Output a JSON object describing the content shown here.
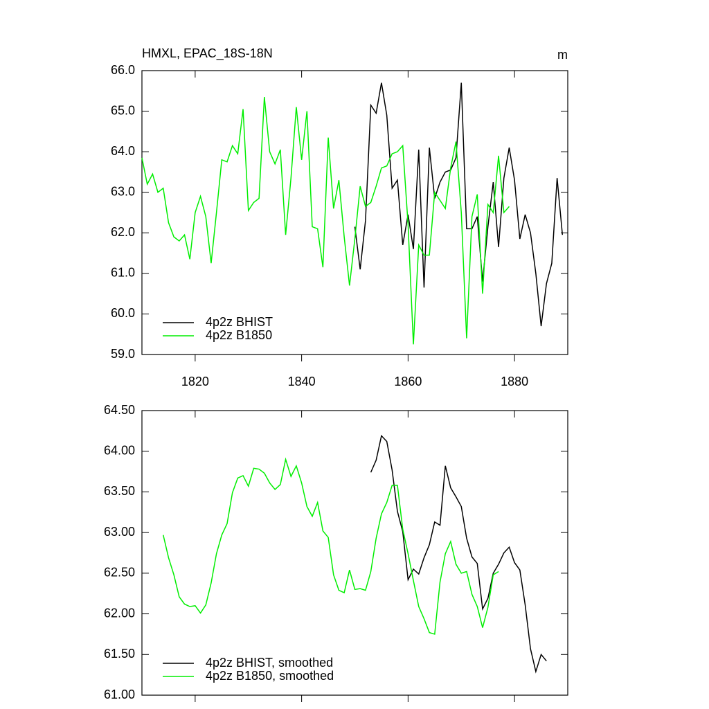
{
  "chart_data": [
    {
      "type": "line",
      "title": "HMXL, EPAC_18S-18N",
      "units": "m",
      "xlim": [
        1810,
        1890
      ],
      "xticks": [
        1820,
        1840,
        1860,
        1880
      ],
      "ylim": [
        59,
        66
      ],
      "yticks": [
        {
          "value": 59,
          "label": "59.0"
        },
        {
          "value": 60,
          "label": "60.0"
        },
        {
          "value": 61,
          "label": "61.0"
        },
        {
          "value": 62,
          "label": "62.0"
        },
        {
          "value": 63,
          "label": "63.0"
        },
        {
          "value": 64,
          "label": "64.0"
        },
        {
          "value": 65,
          "label": "65.0"
        },
        {
          "value": 66,
          "label": "66.0"
        }
      ],
      "legend": "lower left",
      "series": [
        {
          "name": "4p2z BHIST",
          "color": "#000000",
          "x": [
            1850,
            1851,
            1852,
            1853,
            1854,
            1855,
            1856,
            1857,
            1858,
            1859,
            1860,
            1861,
            1862,
            1863,
            1864,
            1865,
            1866,
            1867,
            1868,
            1869,
            1870,
            1871,
            1872,
            1873,
            1874,
            1875,
            1876,
            1877,
            1878,
            1879,
            1880,
            1881,
            1882,
            1883,
            1884,
            1885,
            1886,
            1887,
            1888,
            1889
          ],
          "values": [
            62.15,
            61.1,
            62.3,
            65.15,
            64.95,
            65.7,
            64.9,
            63.1,
            63.3,
            61.7,
            62.45,
            61.6,
            64.05,
            60.65,
            64.1,
            62.85,
            63.25,
            63.5,
            63.55,
            63.85,
            65.7,
            62.1,
            62.1,
            62.4,
            60.8,
            62.15,
            63.25,
            61.65,
            63.35,
            64.1,
            63.3,
            61.85,
            62.45,
            62.0,
            61.0,
            59.7,
            60.75,
            61.25,
            63.35,
            61.95
          ]
        },
        {
          "name": "4p2z B1850",
          "color": "#00ee00",
          "x": [
            1810,
            1811,
            1812,
            1813,
            1814,
            1815,
            1816,
            1817,
            1818,
            1819,
            1820,
            1821,
            1822,
            1823,
            1824,
            1825,
            1826,
            1827,
            1828,
            1829,
            1830,
            1831,
            1832,
            1833,
            1834,
            1835,
            1836,
            1837,
            1838,
            1839,
            1840,
            1841,
            1842,
            1843,
            1844,
            1845,
            1846,
            1847,
            1848,
            1849,
            1850,
            1851,
            1852,
            1853,
            1854,
            1855,
            1856,
            1857,
            1858,
            1859,
            1860,
            1861,
            1862,
            1863,
            1864,
            1865,
            1866,
            1867,
            1868,
            1869,
            1870,
            1871,
            1872,
            1873,
            1874,
            1875,
            1876,
            1877,
            1878,
            1879
          ],
          "values": [
            63.85,
            63.2,
            63.45,
            63.0,
            63.1,
            62.25,
            61.9,
            61.8,
            61.95,
            61.35,
            62.5,
            62.9,
            62.4,
            61.25,
            62.5,
            63.8,
            63.75,
            64.15,
            63.95,
            65.05,
            62.55,
            62.75,
            62.85,
            65.35,
            64.0,
            63.7,
            64.05,
            61.95,
            63.35,
            65.1,
            63.8,
            65.0,
            62.15,
            62.1,
            61.15,
            64.35,
            62.6,
            63.3,
            61.9,
            60.7,
            61.85,
            63.15,
            62.65,
            62.75,
            63.15,
            63.6,
            63.65,
            63.95,
            64.0,
            64.15,
            62.2,
            59.25,
            61.7,
            61.45,
            61.45,
            63.0,
            62.8,
            62.6,
            63.6,
            64.25,
            62.5,
            59.4,
            62.4,
            62.95,
            60.5,
            62.7,
            62.5,
            63.9,
            62.5,
            62.65
          ]
        }
      ]
    },
    {
      "type": "line",
      "xlim": [
        1810,
        1890
      ],
      "ylim": [
        61,
        64.5
      ],
      "yticks": [
        {
          "value": 61,
          "label": "61.00"
        },
        {
          "value": 61.5,
          "label": "61.50"
        },
        {
          "value": 62,
          "label": "62.00"
        },
        {
          "value": 62.5,
          "label": "62.50"
        },
        {
          "value": 63,
          "label": "63.00"
        },
        {
          "value": 63.5,
          "label": "63.50"
        },
        {
          "value": 64,
          "label": "64.00"
        },
        {
          "value": 64.5,
          "label": "64.50"
        }
      ],
      "legend": "lower left",
      "series": [
        {
          "name": "4p2z BHIST, smoothed",
          "color": "#000000",
          "x": [
            1853,
            1854,
            1855,
            1856,
            1857,
            1858,
            1859,
            1860,
            1861,
            1862,
            1863,
            1864,
            1865,
            1866,
            1867,
            1868,
            1869,
            1870,
            1871,
            1872,
            1873,
            1874,
            1875,
            1876,
            1877,
            1878,
            1879,
            1880,
            1881,
            1882,
            1883,
            1884,
            1885,
            1886
          ],
          "values": [
            63.74,
            63.89,
            64.19,
            64.12,
            63.77,
            63.26,
            63.01,
            62.42,
            62.55,
            62.49,
            62.69,
            62.85,
            63.13,
            63.09,
            63.82,
            63.55,
            63.44,
            63.32,
            62.93,
            62.7,
            62.62,
            62.06,
            62.19,
            62.5,
            62.61,
            62.75,
            62.82,
            62.63,
            62.54,
            62.11,
            61.57,
            61.29,
            61.5,
            61.42
          ]
        },
        {
          "name": "4p2z B1850, smoothed",
          "color": "#00ee00",
          "x": [
            1814,
            1815,
            1816,
            1817,
            1818,
            1819,
            1820,
            1821,
            1822,
            1823,
            1824,
            1825,
            1826,
            1827,
            1828,
            1829,
            1830,
            1831,
            1832,
            1833,
            1834,
            1835,
            1836,
            1837,
            1838,
            1839,
            1840,
            1841,
            1842,
            1843,
            1844,
            1845,
            1846,
            1847,
            1848,
            1849,
            1850,
            1851,
            1852,
            1853,
            1854,
            1855,
            1856,
            1857,
            1858,
            1859,
            1860,
            1861,
            1862,
            1863,
            1864,
            1865,
            1866,
            1867,
            1868,
            1869,
            1870,
            1871,
            1872,
            1873,
            1874,
            1875,
            1876,
            1877
          ],
          "values": [
            62.97,
            62.69,
            62.48,
            62.21,
            62.12,
            62.09,
            62.1,
            62.01,
            62.11,
            62.38,
            62.74,
            62.97,
            63.11,
            63.49,
            63.67,
            63.7,
            63.57,
            63.79,
            63.78,
            63.73,
            63.61,
            63.53,
            63.59,
            63.9,
            63.69,
            63.82,
            63.61,
            63.32,
            63.2,
            63.37,
            63.02,
            62.94,
            62.48,
            62.29,
            62.26,
            62.54,
            62.3,
            62.31,
            62.29,
            62.52,
            62.93,
            63.23,
            63.37,
            63.58,
            63.58,
            63.04,
            62.74,
            62.41,
            62.09,
            61.94,
            61.77,
            61.75,
            62.39,
            62.74,
            62.89,
            62.61,
            62.5,
            62.52,
            62.24,
            62.09,
            61.83,
            62.08,
            62.48,
            62.52
          ]
        }
      ]
    }
  ]
}
